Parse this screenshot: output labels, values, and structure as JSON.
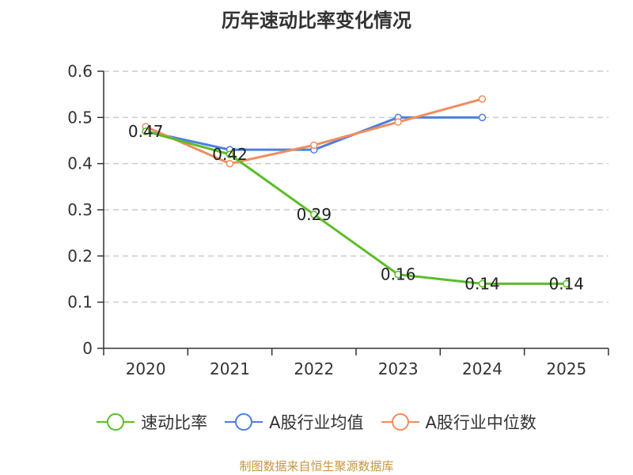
{
  "colors": {
    "series": [
      "#5cbd28",
      "#4e7fde",
      "#f08d5c"
    ],
    "grid": "#cccccc",
    "axis": "#333333"
  },
  "chart_data": {
    "type": "line",
    "title": "历年速动比率变化情况",
    "categories": [
      "2020",
      "2021",
      "2022",
      "2023",
      "2024",
      "2025"
    ],
    "yticks": [
      "0",
      "0.1",
      "0.2",
      "0.3",
      "0.4",
      "0.5",
      "0.6"
    ],
    "ylim": [
      0,
      0.6
    ],
    "grid": true,
    "legend_position": "bottom",
    "series": [
      {
        "name": "速动比率",
        "values": [
          0.47,
          0.42,
          0.29,
          0.16,
          0.14,
          0.14
        ],
        "labels": [
          "0.47",
          "0.42",
          "0.29",
          "0.16",
          "0.14",
          "0.14"
        ]
      },
      {
        "name": "A股行业均值",
        "values": [
          0.47,
          0.43,
          0.43,
          0.5,
          0.5,
          null
        ]
      },
      {
        "name": "A股行业中位数",
        "values": [
          0.48,
          0.4,
          0.44,
          0.49,
          0.54,
          null
        ]
      }
    ]
  },
  "source": "制图数据来自恒生聚源数据库"
}
